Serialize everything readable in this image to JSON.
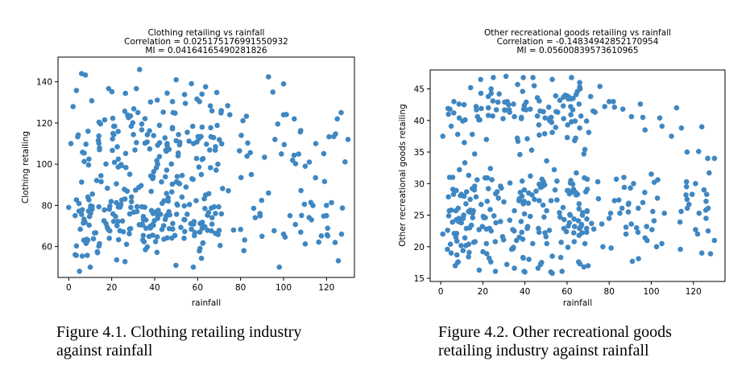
{
  "chart_data": [
    {
      "type": "scatter",
      "title": "Clothing retailing vs rainfall",
      "subtitle_lines": [
        "Correlation = 0.025175176991550932",
        "MI = 0.04164165490281826"
      ],
      "xlabel": "rainfall",
      "ylabel": "Clothing retailing",
      "xlim": [
        -5,
        133
      ],
      "ylim": [
        45,
        152
      ],
      "xticks": [
        0,
        20,
        40,
        60,
        80,
        100,
        120
      ],
      "yticks": [
        60,
        80,
        100,
        120,
        140
      ],
      "color": "#3f87c2",
      "seed": 11,
      "point_count": 430,
      "points": [
        [
          33,
          146
        ],
        [
          6,
          144
        ],
        [
          50,
          141
        ],
        [
          100,
          139
        ],
        [
          95,
          135
        ],
        [
          125,
          122
        ],
        [
          130,
          112
        ],
        [
          115,
          110
        ],
        [
          112,
          101
        ],
        [
          100,
          124
        ],
        [
          105,
          122
        ],
        [
          120,
          75
        ],
        [
          98,
          50
        ],
        [
          90,
          65
        ],
        [
          100,
          66
        ],
        [
          127,
          66
        ],
        [
          124,
          62
        ],
        [
          120,
          80
        ],
        [
          103,
          75
        ],
        [
          108,
          67
        ],
        [
          2,
          128
        ],
        [
          1,
          110
        ],
        [
          0,
          79
        ],
        [
          3,
          75
        ],
        [
          3,
          56
        ],
        [
          5,
          48
        ],
        [
          10,
          50
        ],
        [
          93,
          86
        ],
        [
          89,
          76
        ],
        [
          85,
          95
        ],
        [
          99,
          105
        ],
        [
          96,
          112
        ],
        [
          75,
          124
        ],
        [
          62,
          134
        ],
        [
          71,
          126
        ],
        [
          58,
          50
        ]
      ],
      "caption_lines": [
        "Figure 4.1. Clothing retailing industry",
        "against rainfall"
      ]
    },
    {
      "type": "scatter",
      "title": "Other recreational goods retailing vs rainfall",
      "subtitle_lines": [
        "Correlation = -0.14834942852170954",
        "MI = 0.05600839573610965"
      ],
      "xlabel": "rainfall",
      "ylabel": "Other recreational goods retailing",
      "xlim": [
        -5,
        135
      ],
      "ylim": [
        14.5,
        48
      ],
      "xticks": [
        0,
        20,
        40,
        60,
        80,
        100,
        120
      ],
      "yticks": [
        15,
        20,
        25,
        30,
        35,
        40,
        45
      ],
      "color": "#3f87c2",
      "seed": 23,
      "point_count": 430,
      "points": [
        [
          19,
          46.5
        ],
        [
          25,
          46.8
        ],
        [
          31,
          47
        ],
        [
          53,
          46.5
        ],
        [
          66,
          46
        ],
        [
          112,
          42
        ],
        [
          117,
          35
        ],
        [
          130,
          34
        ],
        [
          124,
          39
        ],
        [
          97,
          38.5
        ],
        [
          96,
          40.5
        ],
        [
          80,
          43
        ],
        [
          105,
          20.5
        ],
        [
          124,
          19
        ],
        [
          122,
          22
        ],
        [
          126,
          24.5
        ],
        [
          127,
          22.5
        ],
        [
          130,
          21
        ],
        [
          117,
          27.5
        ],
        [
          125,
          29
        ],
        [
          100,
          31.5
        ],
        [
          96,
          27
        ],
        [
          87,
          31
        ],
        [
          82,
          43
        ],
        [
          1,
          37.5
        ],
        [
          1,
          22
        ],
        [
          5,
          19
        ],
        [
          8,
          17.5
        ],
        [
          40,
          16
        ],
        [
          53,
          15.8
        ],
        [
          88,
          22
        ],
        [
          98,
          21
        ],
        [
          93,
          23
        ],
        [
          77,
          20
        ],
        [
          70,
          17
        ]
      ],
      "caption_lines": [
        "Figure 4.2. Other recreational goods",
        "retailing industry against rainfall"
      ]
    }
  ]
}
